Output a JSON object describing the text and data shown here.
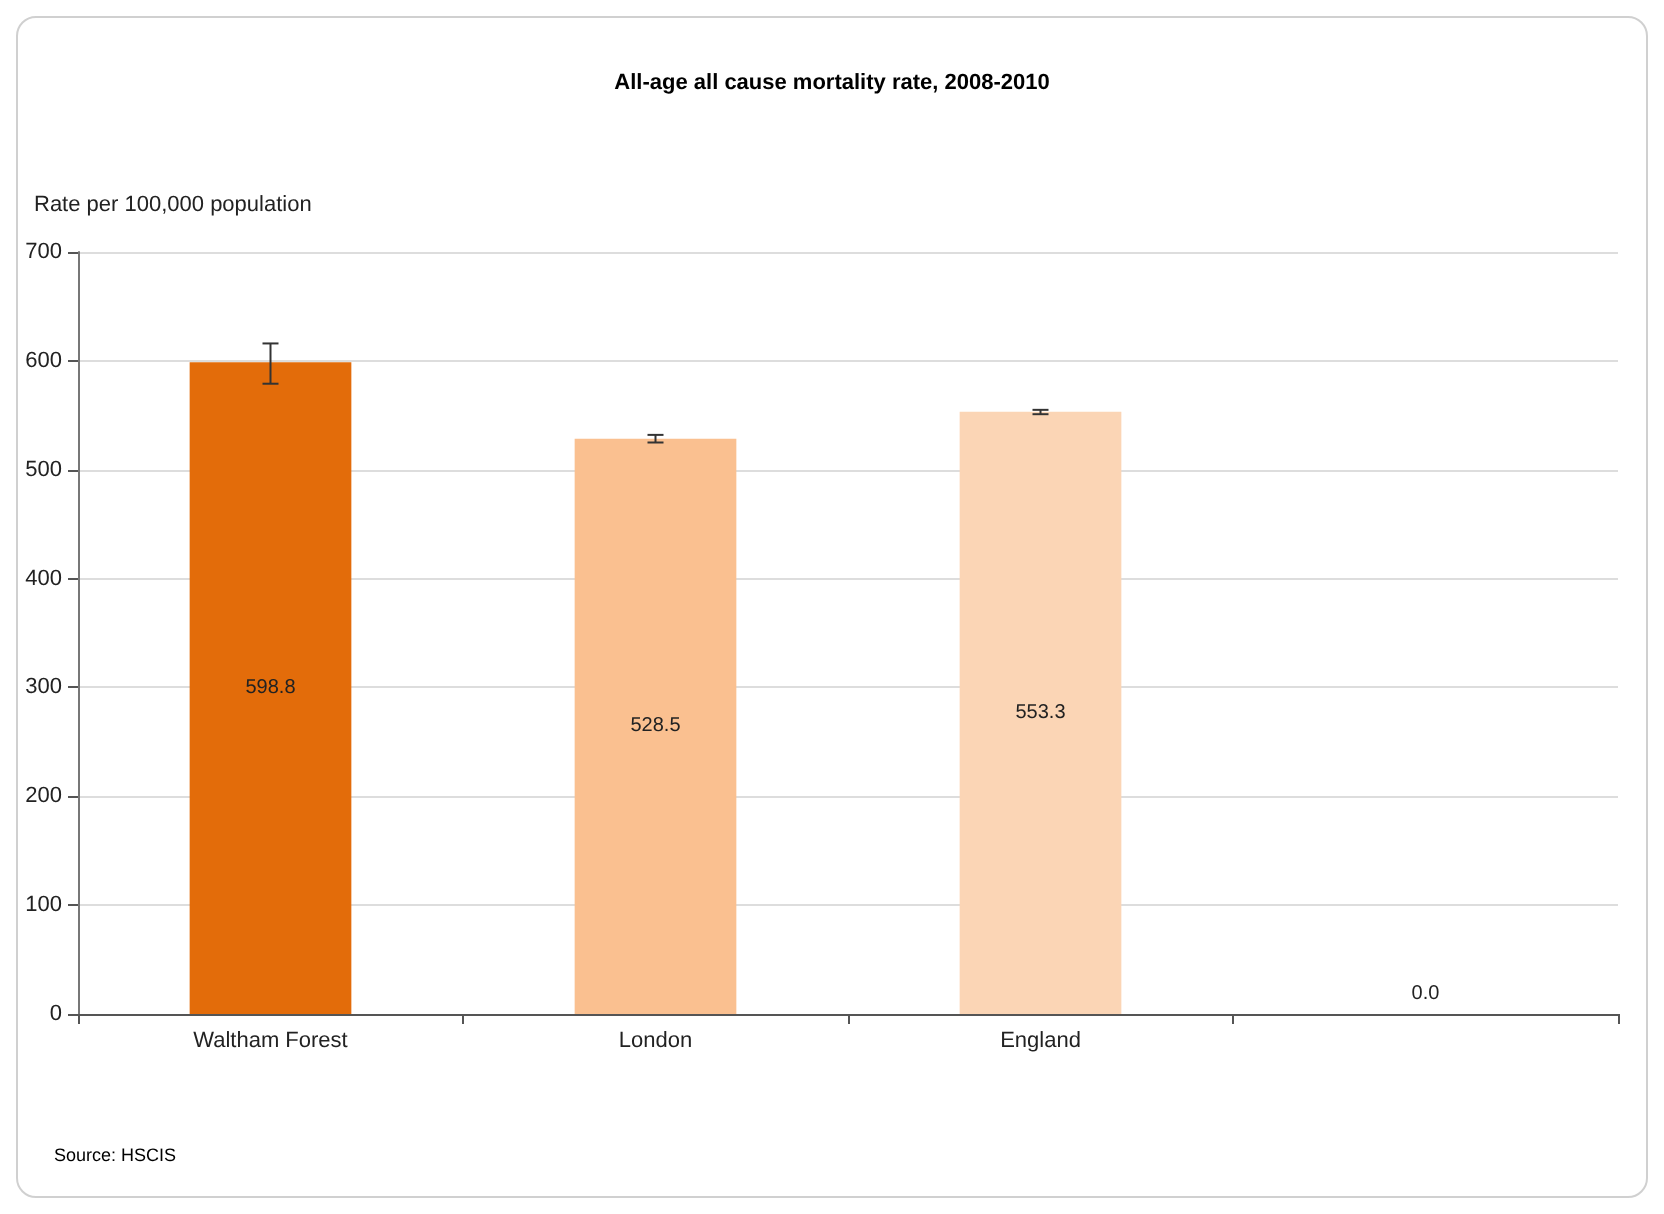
{
  "chart_data": {
    "type": "bar",
    "title": "All-age all cause mortality rate, 2008-2010",
    "ylabel": "Rate per 100,000 population",
    "categories": [
      "Waltham Forest",
      "London",
      "England",
      null
    ],
    "values": [
      598.8,
      528.5,
      553.3,
      0
    ],
    "colors": [
      "#e36c0a",
      "#fac090",
      "#fbd5b5",
      "#fbd5b5"
    ],
    "errors": [
      [
        579,
        616
      ],
      [
        525,
        532
      ],
      [
        551,
        555
      ],
      null
    ],
    "value_labels": [
      "598.8",
      "528.5",
      "553.3",
      "0.0"
    ],
    "ylim": [
      0,
      700
    ],
    "yticks": [
      0,
      100,
      200,
      300,
      400,
      500,
      600,
      700
    ],
    "grid": "y",
    "annotations": [
      "Source: HSCIS"
    ]
  }
}
